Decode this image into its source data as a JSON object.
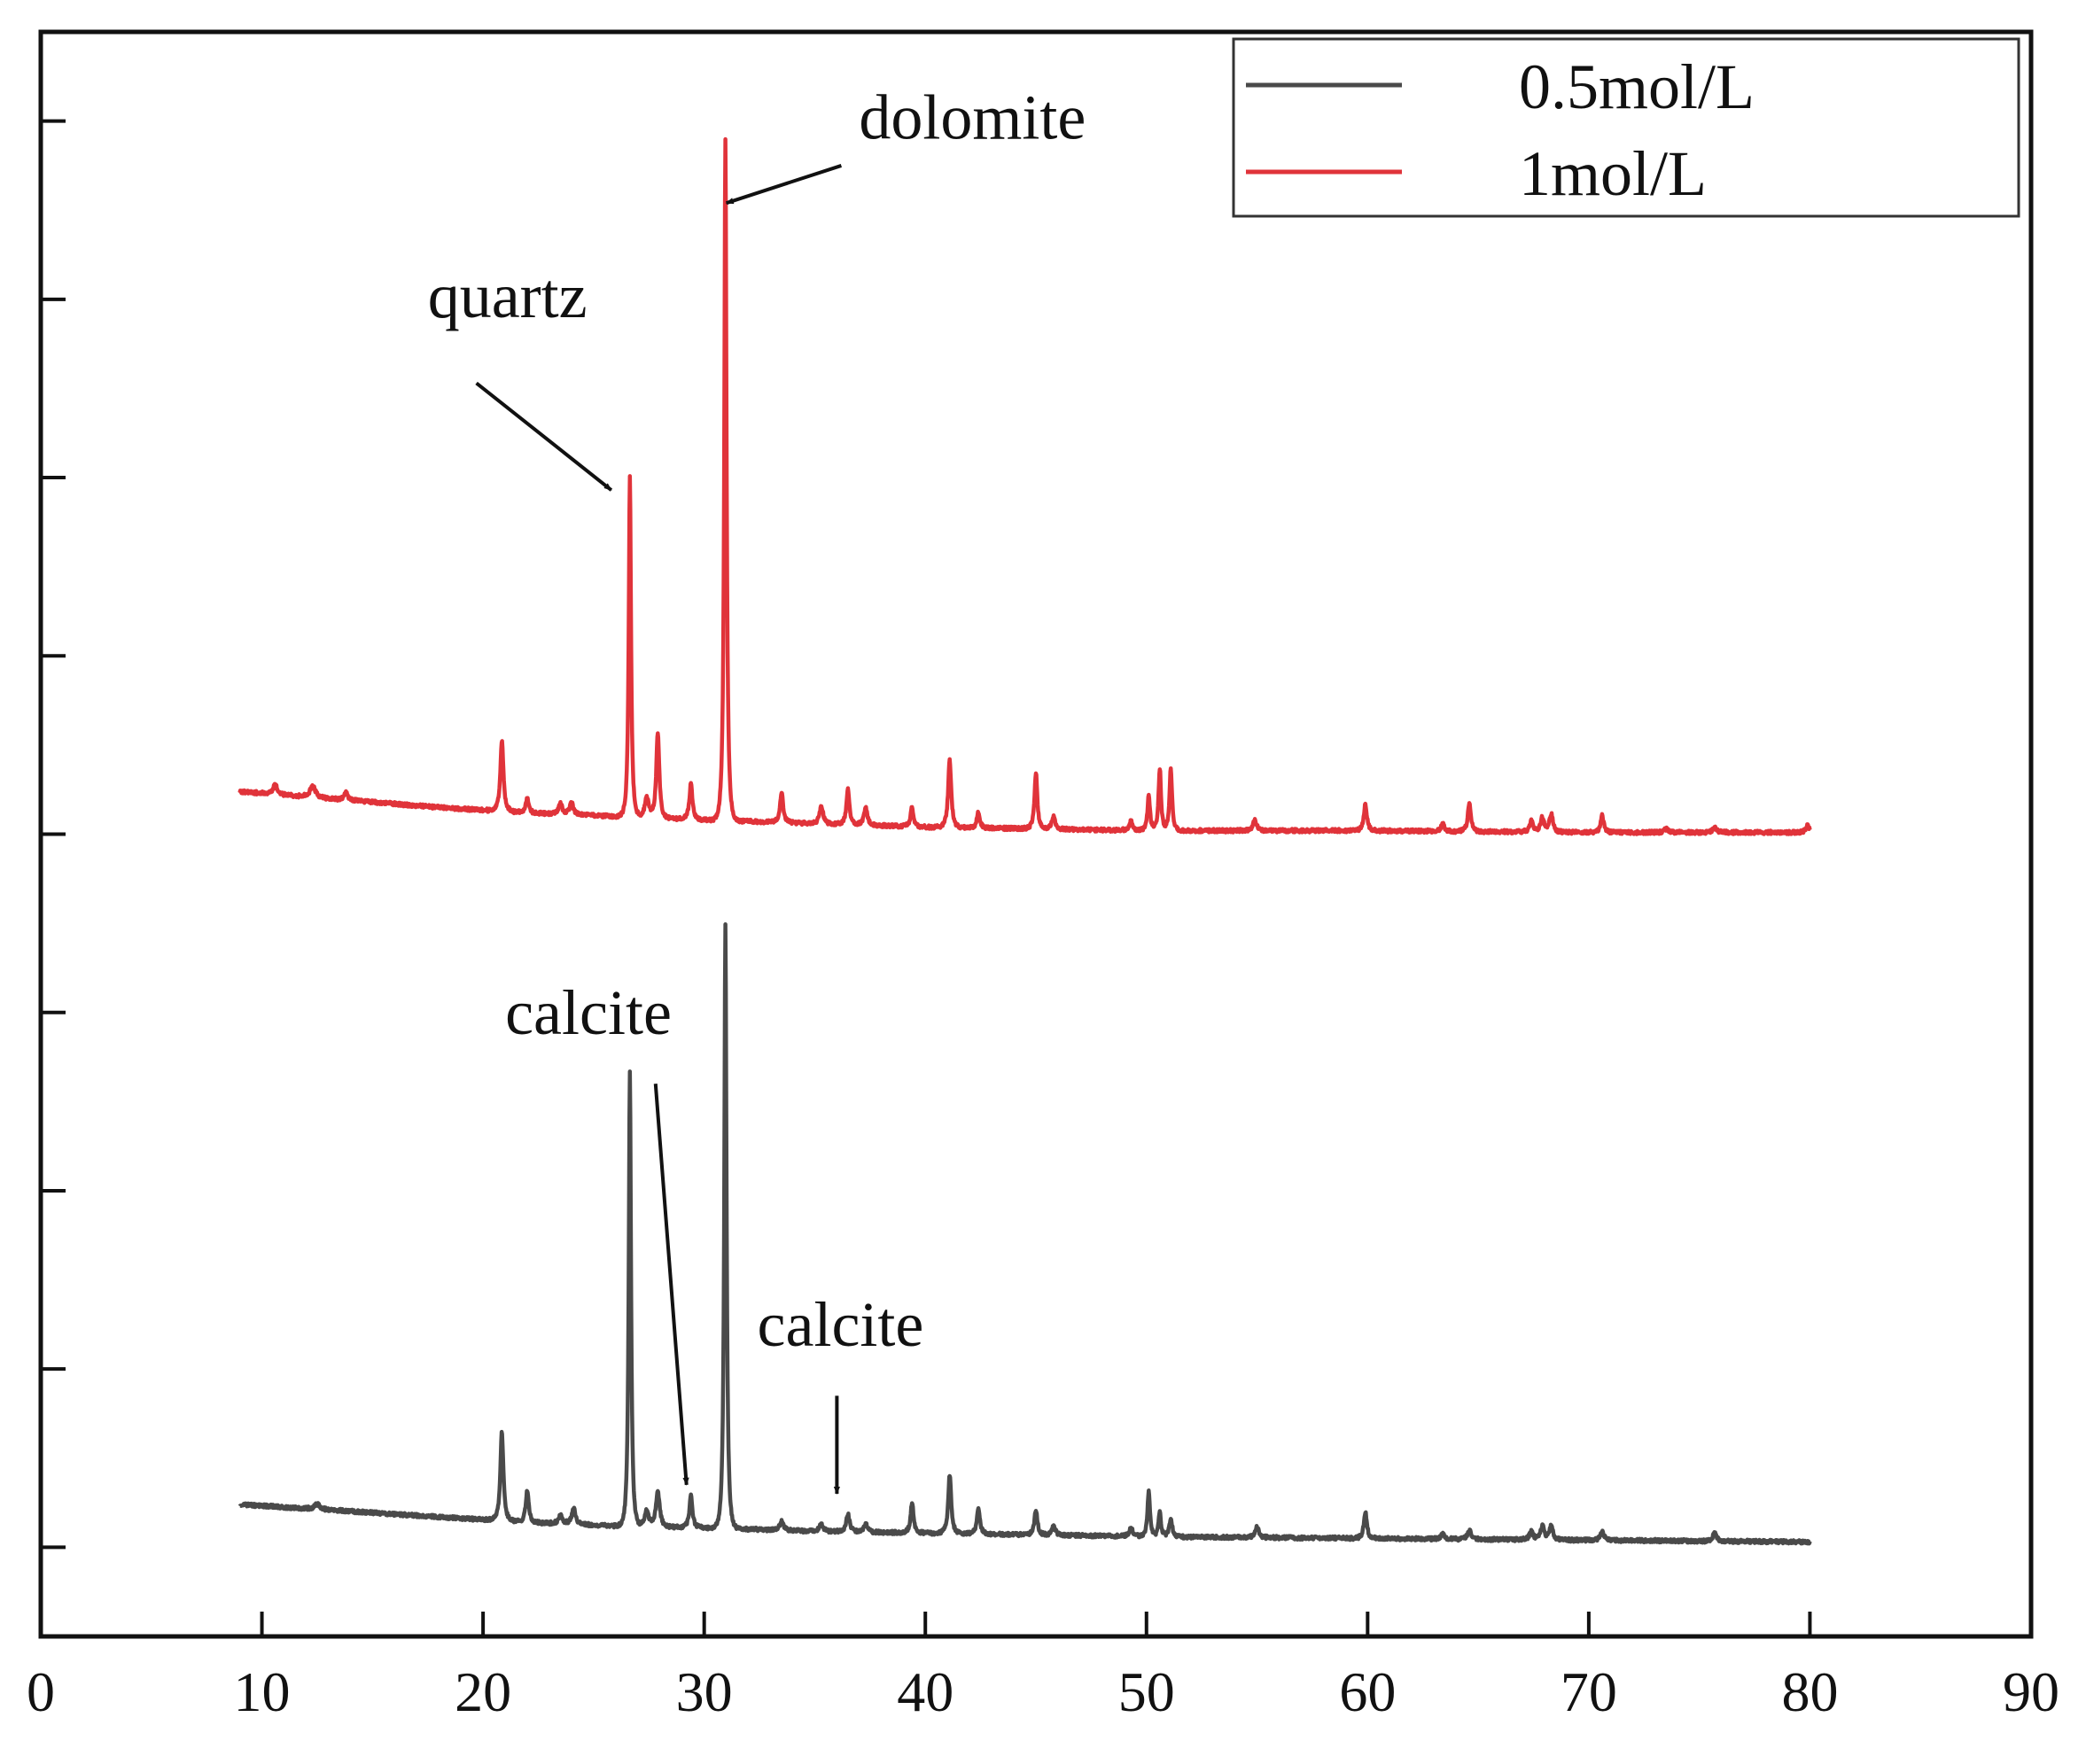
{
  "chart_data": {
    "type": "line",
    "title": "",
    "xlabel": "",
    "ylabel": "",
    "xlim": [
      0,
      90
    ],
    "ylim": [
      0,
      9
    ],
    "x_ticks": [
      0,
      10,
      20,
      30,
      40,
      50,
      60,
      70,
      80,
      90
    ],
    "x_tick_labels": [
      "0",
      "10",
      "20",
      "30",
      "40",
      "50",
      "60",
      "70",
      "80",
      "90"
    ],
    "y_ticks": [
      0.5,
      1.5,
      2.5,
      3.5,
      4.5,
      5.5,
      6.5,
      7.5,
      8.5
    ],
    "grid": false,
    "legend_position": "top-right",
    "legend": [
      "0.5mol/L",
      "1mol/L"
    ],
    "colors": {
      "0.5mol/L": "#4a4a4a",
      "1mol/L": "#e0333a"
    },
    "series": [
      {
        "name": "0.5mol/L",
        "color": "#4a4a4a",
        "baseline": [
          [
            9,
            0.74
          ],
          [
            13,
            0.71
          ],
          [
            18,
            0.67
          ],
          [
            22,
            0.64
          ],
          [
            26,
            0.62
          ],
          [
            30,
            0.61
          ],
          [
            35,
            0.59
          ],
          [
            40,
            0.58
          ],
          [
            45,
            0.57
          ],
          [
            50,
            0.56
          ],
          [
            60,
            0.55
          ],
          [
            70,
            0.54
          ],
          [
            80,
            0.53
          ]
        ],
        "peaks": [
          {
            "x": 12.5,
            "h": 0.03,
            "w": 0.2
          },
          {
            "x": 20.85,
            "h": 0.5,
            "w": 0.12
          },
          {
            "x": 22.0,
            "h": 0.18,
            "w": 0.12
          },
          {
            "x": 23.5,
            "h": 0.05,
            "w": 0.15
          },
          {
            "x": 24.1,
            "h": 0.09,
            "w": 0.15
          },
          {
            "x": 26.64,
            "h": 2.55,
            "w": 0.09
          },
          {
            "x": 27.4,
            "h": 0.09,
            "w": 0.15
          },
          {
            "x": 27.9,
            "h": 0.2,
            "w": 0.15
          },
          {
            "x": 29.4,
            "h": 0.18,
            "w": 0.12
          },
          {
            "x": 30.96,
            "h": 3.38,
            "w": 0.09
          },
          {
            "x": 33.5,
            "h": 0.05,
            "w": 0.15
          },
          {
            "x": 35.3,
            "h": 0.04,
            "w": 0.15
          },
          {
            "x": 36.5,
            "h": 0.1,
            "w": 0.14
          },
          {
            "x": 37.3,
            "h": 0.05,
            "w": 0.14
          },
          {
            "x": 39.4,
            "h": 0.17,
            "w": 0.12
          },
          {
            "x": 41.1,
            "h": 0.33,
            "w": 0.12
          },
          {
            "x": 42.4,
            "h": 0.15,
            "w": 0.12
          },
          {
            "x": 45.0,
            "h": 0.14,
            "w": 0.12
          },
          {
            "x": 45.8,
            "h": 0.05,
            "w": 0.14
          },
          {
            "x": 49.3,
            "h": 0.05,
            "w": 0.14
          },
          {
            "x": 50.1,
            "h": 0.25,
            "w": 0.1
          },
          {
            "x": 50.6,
            "h": 0.14,
            "w": 0.1
          },
          {
            "x": 51.1,
            "h": 0.1,
            "w": 0.12
          },
          {
            "x": 55.0,
            "h": 0.06,
            "w": 0.14
          },
          {
            "x": 59.9,
            "h": 0.15,
            "w": 0.12
          },
          {
            "x": 63.4,
            "h": 0.03,
            "w": 0.14
          },
          {
            "x": 64.6,
            "h": 0.05,
            "w": 0.14
          },
          {
            "x": 67.4,
            "h": 0.05,
            "w": 0.14
          },
          {
            "x": 67.9,
            "h": 0.08,
            "w": 0.14
          },
          {
            "x": 68.3,
            "h": 0.08,
            "w": 0.14
          },
          {
            "x": 70.6,
            "h": 0.05,
            "w": 0.14
          },
          {
            "x": 75.7,
            "h": 0.05,
            "w": 0.14
          }
        ]
      },
      {
        "name": "1mol/L",
        "color": "#e0333a",
        "baseline": [
          [
            9,
            4.74
          ],
          [
            13,
            4.7
          ],
          [
            18,
            4.65
          ],
          [
            22,
            4.62
          ],
          [
            26,
            4.6
          ],
          [
            30,
            4.58
          ],
          [
            35,
            4.56
          ],
          [
            40,
            4.54
          ],
          [
            45,
            4.53
          ],
          [
            50,
            4.52
          ],
          [
            60,
            4.52
          ],
          [
            70,
            4.51
          ],
          [
            80,
            4.51
          ]
        ],
        "peaks": [
          {
            "x": 10.6,
            "h": 0.06,
            "w": 0.15
          },
          {
            "x": 12.3,
            "h": 0.07,
            "w": 0.2
          },
          {
            "x": 13.8,
            "h": 0.04,
            "w": 0.15
          },
          {
            "x": 20.85,
            "h": 0.4,
            "w": 0.12
          },
          {
            "x": 22.0,
            "h": 0.08,
            "w": 0.12
          },
          {
            "x": 23.5,
            "h": 0.06,
            "w": 0.14
          },
          {
            "x": 24.0,
            "h": 0.07,
            "w": 0.14
          },
          {
            "x": 26.64,
            "h": 1.91,
            "w": 0.09
          },
          {
            "x": 27.4,
            "h": 0.12,
            "w": 0.15
          },
          {
            "x": 27.9,
            "h": 0.48,
            "w": 0.12
          },
          {
            "x": 29.4,
            "h": 0.2,
            "w": 0.12
          },
          {
            "x": 30.96,
            "h": 3.82,
            "w": 0.09
          },
          {
            "x": 33.5,
            "h": 0.17,
            "w": 0.12
          },
          {
            "x": 35.3,
            "h": 0.1,
            "w": 0.14
          },
          {
            "x": 36.5,
            "h": 0.2,
            "w": 0.12
          },
          {
            "x": 37.3,
            "h": 0.1,
            "w": 0.14
          },
          {
            "x": 39.4,
            "h": 0.11,
            "w": 0.12
          },
          {
            "x": 41.1,
            "h": 0.38,
            "w": 0.12
          },
          {
            "x": 42.4,
            "h": 0.09,
            "w": 0.12
          },
          {
            "x": 45.0,
            "h": 0.32,
            "w": 0.11
          },
          {
            "x": 45.8,
            "h": 0.07,
            "w": 0.14
          },
          {
            "x": 49.3,
            "h": 0.05,
            "w": 0.14
          },
          {
            "x": 50.1,
            "h": 0.2,
            "w": 0.1
          },
          {
            "x": 50.6,
            "h": 0.35,
            "w": 0.1
          },
          {
            "x": 51.1,
            "h": 0.35,
            "w": 0.1
          },
          {
            "x": 54.9,
            "h": 0.06,
            "w": 0.14
          },
          {
            "x": 59.9,
            "h": 0.15,
            "w": 0.12
          },
          {
            "x": 63.4,
            "h": 0.04,
            "w": 0.14
          },
          {
            "x": 64.6,
            "h": 0.16,
            "w": 0.12
          },
          {
            "x": 67.4,
            "h": 0.06,
            "w": 0.14
          },
          {
            "x": 67.9,
            "h": 0.08,
            "w": 0.14
          },
          {
            "x": 68.3,
            "h": 0.1,
            "w": 0.14
          },
          {
            "x": 70.6,
            "h": 0.1,
            "w": 0.12
          },
          {
            "x": 73.5,
            "h": 0.02,
            "w": 0.14
          },
          {
            "x": 75.7,
            "h": 0.03,
            "w": 0.14
          },
          {
            "x": 79.9,
            "h": 0.04,
            "w": 0.14
          }
        ]
      }
    ],
    "annotations": [
      {
        "text": "dolomite",
        "target": {
          "x": 31.0,
          "y": 8.04
        },
        "label_anchor": {
          "x": 37.0,
          "y": 8.4
        },
        "align": "start"
      },
      {
        "text": "quartz",
        "target": {
          "x": 25.8,
          "y": 6.43
        },
        "label_anchor": {
          "x": 17.5,
          "y": 7.4
        },
        "align": "start"
      },
      {
        "text": "calcite",
        "target": {
          "x": 29.2,
          "y": 0.85
        },
        "label_anchor": {
          "x": 21.0,
          "y": 3.38
        },
        "align": "start"
      },
      {
        "text": "calcite",
        "target": {
          "x": 36.0,
          "y": 0.8
        },
        "label_anchor": {
          "x": 32.4,
          "y": 1.63
        },
        "align": "start"
      }
    ]
  }
}
